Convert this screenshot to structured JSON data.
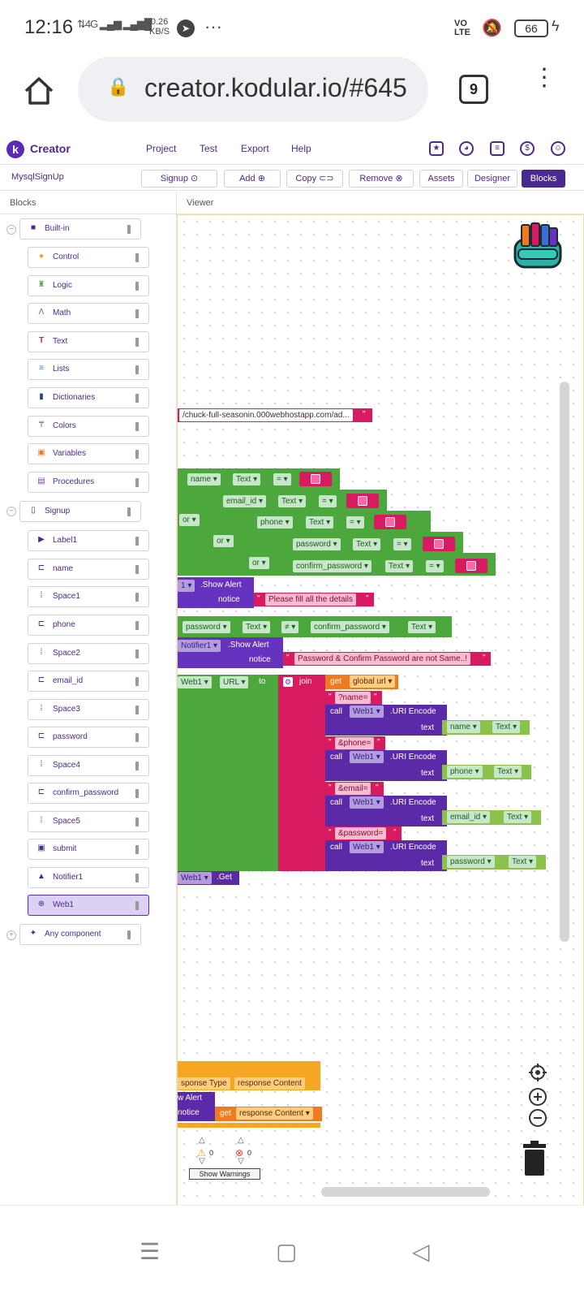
{
  "status_bar": {
    "time": "12:16",
    "network": "4G",
    "speed_value": "0.26",
    "speed_unit": "KB/S",
    "volte": "VO LTE",
    "battery": "66"
  },
  "browser": {
    "url": "creator.kodular.io/#645",
    "tab_count": "9"
  },
  "app_header": {
    "brand": "Creator",
    "menu": [
      "Project",
      "Test",
      "Export",
      "Help"
    ]
  },
  "toolbar": {
    "project_name": "MysqlSignUp",
    "screen_label": "Signup",
    "add_label": "Add",
    "copy_label": "Copy",
    "remove_label": "Remove",
    "assets_label": "Assets",
    "designer_label": "Designer",
    "blocks_label": "Blocks"
  },
  "panels": {
    "blocks_title": "Blocks",
    "viewer_title": "Viewer"
  },
  "builtin": {
    "label": "Built-in",
    "items": [
      "Control",
      "Logic",
      "Math",
      "Text",
      "Lists",
      "Dictionaries",
      "Colors",
      "Variables",
      "Procedures"
    ]
  },
  "signup": {
    "label": "Signup",
    "items": [
      "Label1",
      "name",
      "Space1",
      "phone",
      "Space2",
      "email_id",
      "Space3",
      "password",
      "Space4",
      "confirm_password",
      "Space5",
      "submit",
      "Notifier1",
      "Web1"
    ]
  },
  "any_component": "Any component",
  "colors": {
    "accent": "#4a2a8f",
    "control": "#f0a020",
    "logic": "#4ca83c",
    "math": "#3d6fd1",
    "text": "#d81b60",
    "lists": "#3b77c9",
    "dict": "#2d3f91",
    "color": "#777777",
    "variables": "#f07b1f",
    "procedures": "#7b3fb3",
    "selected": "#dcd0f5"
  },
  "blocks": {
    "url_text": "/chuck-full-seasonin.000webhostapp.com/ad...",
    "quote": "\"",
    "name": "name",
    "email_id": "email_id",
    "phone": "phone",
    "password": "password",
    "confirm_password": "confirm_password",
    "text_prop": "Text",
    "eq": "=",
    "neq": "≠",
    "or": "or",
    "show_alert_prefix": "1",
    "show_alert": ".Show Alert",
    "notice": "notice",
    "fill_msg": "Please fill all the details",
    "notifier": "Notifier1",
    "mismatch_msg": "Password & Confirm Password are not Same..!",
    "web1": "Web1",
    "url_prop": "URL",
    "to": "to",
    "join": "join",
    "get": "get",
    "global_url": "global url",
    "p_name": "?name=",
    "p_phone": "&phone=",
    "p_email": "&email=",
    "p_password": "&password=",
    "call": "call",
    "uri_encode": ".URI Encode",
    "text": "text",
    "get_call": ".Get",
    "response_type": "sponse Type",
    "response_content": "response Content",
    "w_alert": "w Alert"
  },
  "warnings": {
    "warn_count": "0",
    "error_count": "0",
    "button": "Show Warnings"
  }
}
